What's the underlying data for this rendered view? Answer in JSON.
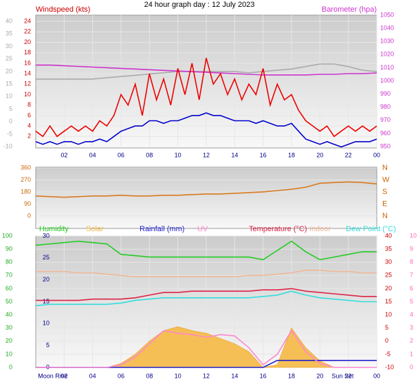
{
  "title": "24 hour graph day : 12 July 2023",
  "chart_data": [
    {
      "type": "line",
      "ylabel": "Windspeed (kts)",
      "y2label": "Barometer (hpa)",
      "grid": true,
      "x": [
        0,
        0.5,
        1,
        1.5,
        2,
        2.5,
        3,
        3.5,
        4,
        4.5,
        5,
        5.5,
        6,
        6.5,
        7,
        7.5,
        8,
        8.5,
        9,
        9.5,
        10,
        10.5,
        11,
        11.5,
        12,
        12.5,
        13,
        13.5,
        14,
        14.5,
        15,
        15.5,
        16,
        16.5,
        17,
        17.5,
        18,
        18.5,
        19,
        19.5,
        20,
        20.5,
        21,
        21.5,
        22,
        22.5,
        23,
        23.5,
        24
      ],
      "xlim": [
        0,
        24
      ],
      "xticks": [
        {
          "value": 2,
          "label": "02"
        },
        {
          "value": 4,
          "label": "04"
        },
        {
          "value": 6,
          "label": "06"
        },
        {
          "value": 8,
          "label": "08"
        },
        10,
        12,
        14,
        16,
        18,
        20,
        22,
        {
          "value": 24,
          "label": "00"
        }
      ],
      "ylim": [
        -0.2,
        25.2
      ],
      "yticks": [
        2,
        4,
        6,
        8,
        10,
        12,
        14,
        16,
        18,
        20,
        22,
        24
      ],
      "ycolor": "#cc0000",
      "y2lim": [
        949,
        1050
      ],
      "y2ticks": [
        950,
        960,
        970,
        980,
        990,
        1000,
        1010,
        1020,
        1030,
        1040,
        1050
      ],
      "y2color": "#cc33cc",
      "y3lim": [
        -10.5,
        42.5
      ],
      "y3ticks": [
        -10,
        -5,
        0,
        5,
        10,
        15,
        20,
        25,
        30,
        35,
        40
      ],
      "y3color": "#aaaaaa",
      "series": [
        {
          "color": "#aaaaaa",
          "axis": "y3",
          "x": [
            0,
            1,
            2,
            3,
            4,
            5,
            6,
            7,
            8,
            9,
            10,
            11,
            12,
            13,
            14,
            15,
            16,
            17,
            18,
            19,
            20,
            21,
            22,
            23,
            24
          ],
          "values": [
            17,
            17,
            17,
            17,
            17,
            17.5,
            18,
            18.5,
            19,
            19.5,
            20,
            20,
            20,
            20,
            20,
            19.5,
            20,
            20.5,
            21,
            22,
            23,
            23,
            22,
            20.5,
            20
          ]
        },
        {
          "color": "#cc33cc",
          "axis": "y2",
          "x": [
            0,
            1,
            2,
            3,
            4,
            5,
            6,
            7,
            8,
            9,
            10,
            11,
            12,
            13,
            14,
            15,
            16,
            17,
            18,
            19,
            20,
            21,
            22,
            23,
            24
          ],
          "values": [
            1012,
            1012,
            1011.5,
            1011,
            1010.5,
            1010,
            1009.5,
            1009,
            1008.5,
            1008,
            1007.5,
            1007,
            1006.5,
            1006,
            1005.5,
            1005,
            1004.5,
            1004.5,
            1004.5,
            1004.5,
            1005,
            1005,
            1005.5,
            1005.5,
            1006
          ]
        },
        {
          "color": "#ee0000",
          "values": [
            3,
            2,
            4,
            2,
            3,
            4,
            3,
            4,
            3,
            5,
            4,
            6,
            10,
            8,
            12,
            6,
            14,
            9,
            13,
            8,
            15,
            10,
            16,
            9,
            17,
            12,
            14,
            10,
            13,
            9,
            12,
            10,
            15,
            8,
            12,
            9,
            10,
            7,
            5,
            4,
            3,
            4,
            2,
            3,
            4,
            3,
            4,
            3,
            4
          ]
        },
        {
          "color": "#0000cc",
          "values": [
            1,
            0.5,
            1,
            0.5,
            1,
            1,
            0.5,
            1,
            1,
            1.5,
            1,
            2,
            3,
            3.5,
            4,
            4,
            5,
            5,
            4.5,
            5,
            5,
            5.5,
            6,
            6,
            6.5,
            6,
            6,
            5.5,
            5,
            5,
            5,
            4.5,
            5,
            4.5,
            4,
            4,
            4.5,
            3,
            1.5,
            1,
            0.5,
            1,
            0.5,
            0,
            0.5,
            1,
            1,
            1,
            1.5
          ]
        }
      ]
    },
    {
      "type": "line",
      "grid": true,
      "x": [
        0,
        1,
        2,
        3,
        4,
        5,
        6,
        7,
        8,
        9,
        10,
        11,
        12,
        13,
        14,
        15,
        16,
        17,
        18,
        19,
        20,
        21,
        22,
        23,
        24
      ],
      "xlim": [
        0,
        24
      ],
      "ylim": [
        -93,
        365
      ],
      "yticks": [
        0,
        90,
        180,
        270,
        360
      ],
      "ycolor": "#cc6600",
      "y2lim": [
        -93,
        365
      ],
      "y2ticks": [
        {
          "value": 0,
          "label": "N"
        },
        {
          "value": 90,
          "label": "E"
        },
        {
          "value": 180,
          "label": "S"
        },
        {
          "value": 270,
          "label": "W"
        },
        {
          "value": 360,
          "label": "N"
        }
      ],
      "y2color": "#cc6600",
      "series": [
        {
          "color": "#d97a1e",
          "values": [
            150,
            145,
            140,
            145,
            150,
            150,
            155,
            150,
            150,
            155,
            155,
            160,
            165,
            165,
            170,
            175,
            180,
            190,
            200,
            215,
            245,
            250,
            255,
            250,
            240
          ]
        }
      ]
    },
    {
      "type": "line",
      "grid": true,
      "x": [
        0,
        1,
        2,
        3,
        4,
        5,
        6,
        7,
        8,
        9,
        10,
        11,
        12,
        13,
        14,
        15,
        16,
        17,
        18,
        19,
        20,
        21,
        22,
        23,
        24
      ],
      "xlim": [
        0,
        24
      ],
      "xticks": [
        {
          "value": 2,
          "label": "02"
        },
        {
          "value": 4,
          "label": "04"
        },
        {
          "value": 6,
          "label": "06"
        },
        {
          "value": 8,
          "label": "08"
        },
        10,
        12,
        14,
        16,
        18,
        20,
        22,
        {
          "value": 24,
          "label": "00"
        }
      ],
      "annotations": [
        {
          "label": "Moon Rise",
          "x": 1.2
        },
        {
          "label": "Sun Set",
          "x": 21.6
        }
      ],
      "ylim": [
        0,
        100
      ],
      "yticks": [
        0,
        10,
        20,
        30,
        40,
        50,
        60,
        70,
        80,
        90,
        100
      ],
      "ycolor": "#22aa22",
      "y3lim": [
        0,
        30
      ],
      "y3ticks": [
        0,
        5,
        10,
        15,
        20,
        25,
        30
      ],
      "y3color": "#000088",
      "y2lim": [
        -10,
        40
      ],
      "y2ticks": [
        -10,
        -5,
        0,
        5,
        10,
        15,
        20,
        25,
        30,
        35,
        40
      ],
      "y2color": "#cc0000",
      "y4lim": [
        0,
        10
      ],
      "y4ticks": [
        0,
        1,
        2,
        3,
        4,
        5,
        6,
        7,
        8,
        9,
        10
      ],
      "y4color": "#ff66bb",
      "series": [
        {
          "name": "Humidity",
          "color": "#22cc22",
          "values": [
            93,
            94,
            95,
            96,
            95,
            94,
            86,
            85,
            84,
            84,
            84,
            84,
            84,
            84,
            84,
            84,
            82,
            89,
            96,
            88,
            82,
            84,
            86,
            88,
            88
          ]
        },
        {
          "name": "Solar",
          "color": "#f5b945",
          "kind": "area",
          "values": [
            0,
            0,
            0,
            0,
            0,
            0,
            3,
            10,
            20,
            28,
            31,
            28,
            26,
            22,
            18,
            12,
            0,
            2,
            30,
            15,
            5,
            0,
            0,
            0,
            0
          ]
        },
        {
          "name": "Rainfall (mm)",
          "color": "#2222cc",
          "axis": "y3",
          "values": [
            0,
            0,
            0,
            0,
            0,
            0,
            0,
            0,
            0,
            0,
            0,
            0,
            0,
            0,
            0,
            0,
            0,
            1.6,
            1.6,
            1.6,
            1.6,
            1.6,
            1.6,
            1.6,
            1.6
          ]
        },
        {
          "name": "UV",
          "color": "#ff88cc",
          "axis": "y4",
          "values": [
            0,
            0,
            0,
            0,
            0,
            0,
            0.2,
            0.8,
            1.8,
            2.8,
            2.6,
            2.5,
            2.3,
            2.5,
            2.4,
            1.5,
            0.2,
            1,
            2.8,
            1.2,
            0.3,
            0,
            0,
            0,
            0
          ]
        },
        {
          "name": "Temperature (°C)",
          "color": "#dd2244",
          "axis": "y2",
          "values": [
            15.5,
            15.5,
            15.5,
            15.5,
            16,
            16,
            16,
            16.5,
            17.5,
            18.5,
            18.5,
            19,
            19,
            19,
            19,
            19,
            19.5,
            19.5,
            20,
            19,
            18.5,
            18,
            17.5,
            17,
            17
          ]
        },
        {
          "name": "Indoor",
          "color": "#f0b898",
          "axis": "y2",
          "values": [
            26.5,
            26.5,
            26.5,
            26,
            26,
            25.5,
            25,
            24.5,
            24.5,
            24.5,
            24.5,
            24.5,
            24.5,
            24.5,
            24.5,
            25,
            25,
            25.5,
            26,
            27,
            27,
            26.5,
            26.5,
            26,
            26
          ]
        },
        {
          "name": "Dew Point (°C)",
          "color": "#33dddd",
          "axis": "y2",
          "values": [
            13.5,
            14,
            14,
            14,
            14,
            14,
            14.5,
            15.5,
            16,
            16.5,
            16.5,
            16.5,
            16.5,
            16.5,
            16.5,
            16.5,
            17,
            17.5,
            19,
            17.5,
            16.5,
            16,
            15.5,
            15,
            15
          ]
        }
      ]
    }
  ]
}
